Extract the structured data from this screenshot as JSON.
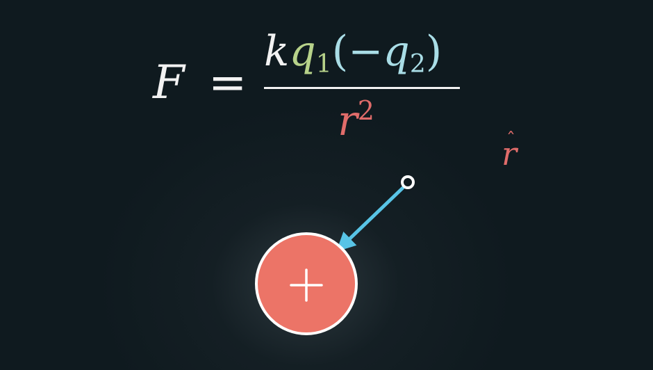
{
  "equation": {
    "lhs": "F",
    "equals": "=",
    "numerator": {
      "k": "k",
      "q1_letter": "q",
      "q1_sub": "1",
      "open_paren": "(",
      "minus": "−",
      "q2_letter": "q",
      "q2_sub": "2",
      "close_paren": ")"
    },
    "denominator": {
      "r": "r",
      "exponent": "2"
    }
  },
  "unit_vector_label": {
    "letter": "r",
    "hat": "ˆ"
  },
  "charge": {
    "symbol": "+",
    "icon": "plus-icon"
  },
  "colors": {
    "background": "#0f1a1f",
    "text": "#f2f2f2",
    "q1_color": "#b7d28a",
    "q2_color": "#a9dde6",
    "r_color": "#e06c6a",
    "charge_fill": "#ec7467",
    "charge_stroke": "#ffffff",
    "arrow_color": "#58c4e6"
  }
}
